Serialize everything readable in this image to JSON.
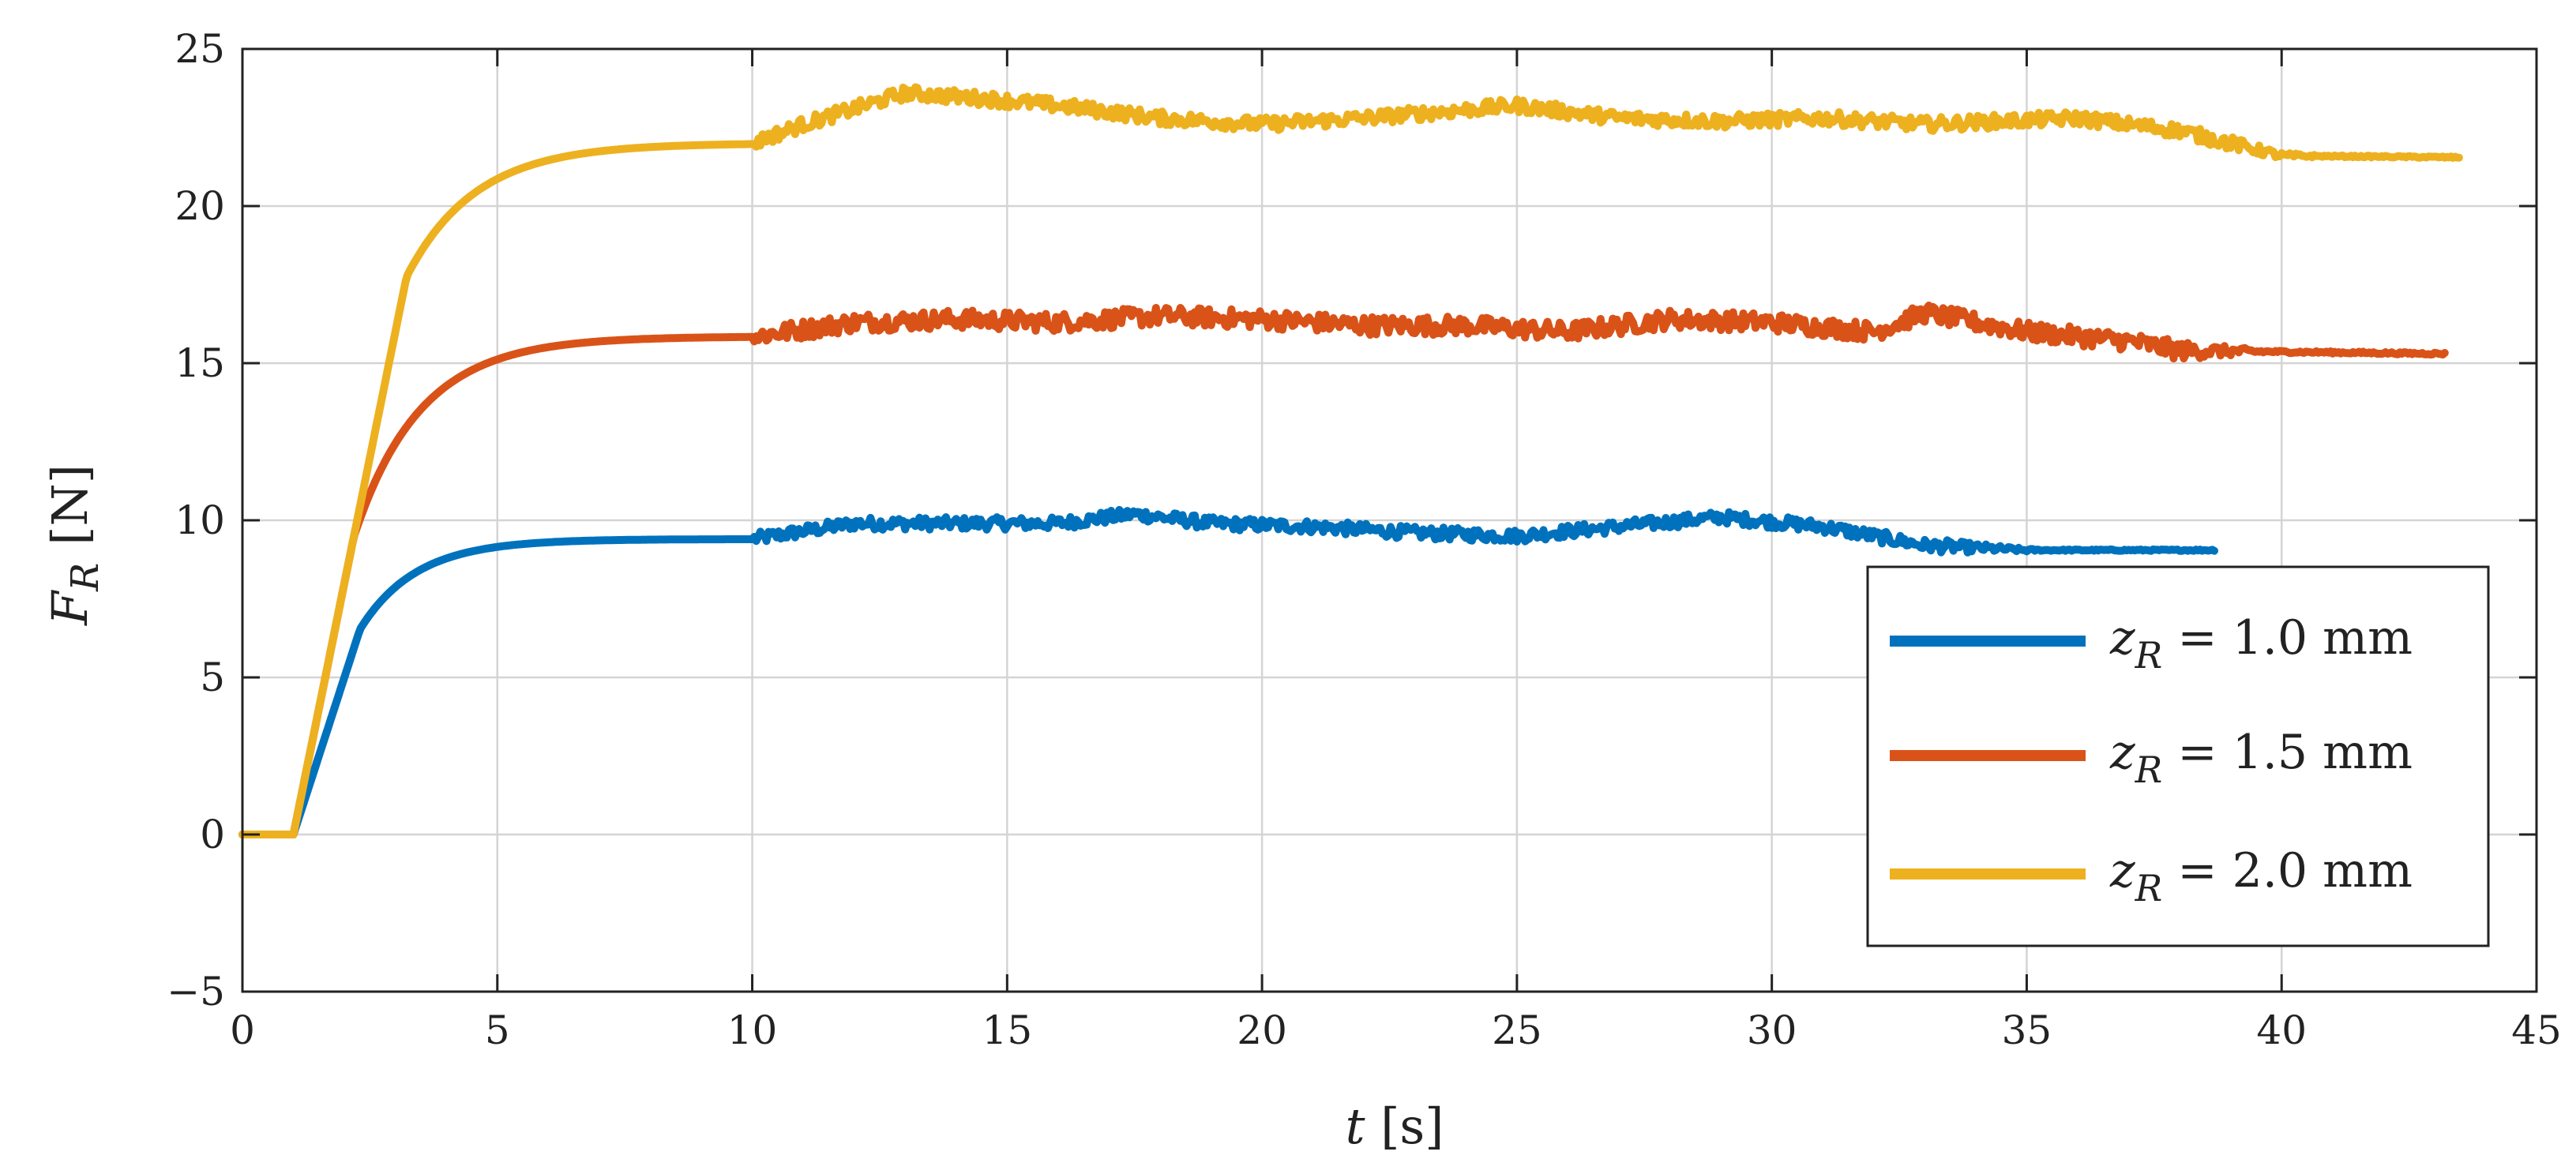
{
  "chart_data": {
    "type": "line",
    "title": "",
    "xlabel": "t [s]",
    "ylabel": "F_R [N]",
    "xlabel_parts": {
      "var": "t",
      "unit": " [s]"
    },
    "ylabel_parts": {
      "var": "F",
      "sub": "R",
      "unit": "[N]"
    },
    "xlim": [
      0,
      45
    ],
    "ylim": [
      -5,
      25
    ],
    "x_ticks": [
      0,
      5,
      10,
      15,
      20,
      25,
      30,
      35,
      40,
      45
    ],
    "y_ticks": [
      -5,
      0,
      5,
      10,
      15,
      20,
      25
    ],
    "x_tick_labels": [
      "0",
      "5",
      "10",
      "15",
      "20",
      "25",
      "30",
      "35",
      "40",
      "45"
    ],
    "y_tick_labels": [
      "−5",
      "0",
      "5",
      "10",
      "15",
      "20",
      "25"
    ],
    "grid": true,
    "legend_position": "bottom-right",
    "series": [
      {
        "name": "z_R = 1.0 mm",
        "label_var": "z",
        "label_sub": "R",
        "label_rest": " = 1.0 mm",
        "color": "#0072BD",
        "x_end": 38.7,
        "step_time": 1.0,
        "steady_level": 9.4,
        "tau": 1.1,
        "onset_slope": 5.0,
        "noisy_start": 10,
        "noisy_end": 33.5,
        "final_level": 9.05,
        "noise_amp": 0.2,
        "points": [
          [
            0,
            0
          ],
          [
            1,
            0
          ],
          [
            2,
            6.2
          ],
          [
            3,
            8.3
          ],
          [
            4,
            9.0
          ],
          [
            5,
            9.3
          ],
          [
            7,
            9.4
          ],
          [
            10,
            9.4
          ],
          [
            12,
            9.9
          ],
          [
            14,
            9.9
          ],
          [
            16,
            9.9
          ],
          [
            17.5,
            10.2
          ],
          [
            19,
            9.9
          ],
          [
            21,
            9.8
          ],
          [
            23,
            9.6
          ],
          [
            25,
            9.5
          ],
          [
            27,
            9.8
          ],
          [
            29,
            10.1
          ],
          [
            31,
            9.8
          ],
          [
            33,
            9.2
          ],
          [
            35,
            9.05
          ],
          [
            38.7,
            9.05
          ]
        ]
      },
      {
        "name": "z_R = 1.5 mm",
        "label_var": "z",
        "label_sub": "R",
        "label_rest": " = 1.5 mm",
        "color": "#D95319",
        "x_end": 43.2,
        "step_time": 1.0,
        "steady_level": 15.85,
        "tau": 1.3,
        "onset_slope": 8.0,
        "noisy_start": 10,
        "noisy_end": 38,
        "final_level": 15.3,
        "noise_amp": 0.3,
        "points": [
          [
            0,
            0
          ],
          [
            1,
            0
          ],
          [
            2,
            8.5
          ],
          [
            3,
            13.0
          ],
          [
            4,
            14.8
          ],
          [
            5,
            15.5
          ],
          [
            7,
            15.85
          ],
          [
            10,
            15.85
          ],
          [
            12,
            16.3
          ],
          [
            14,
            16.4
          ],
          [
            16,
            16.3
          ],
          [
            18,
            16.5
          ],
          [
            20,
            16.4
          ],
          [
            22,
            16.2
          ],
          [
            24,
            16.2
          ],
          [
            26,
            16.0
          ],
          [
            28,
            16.4
          ],
          [
            30,
            16.3
          ],
          [
            32,
            16.0
          ],
          [
            33,
            16.6
          ],
          [
            35,
            16.0
          ],
          [
            37,
            15.7
          ],
          [
            38,
            15.4
          ],
          [
            43.2,
            15.3
          ]
        ]
      },
      {
        "name": "z_R = 2.0 mm",
        "label_var": "z",
        "label_sub": "R",
        "label_rest": " = 2.0 mm",
        "color": "#EDB120",
        "x_end": 43.5,
        "step_time": 1.0,
        "steady_level": 22.0,
        "tau": 1.35,
        "onset_slope": 8.0,
        "noisy_start": 10,
        "noisy_end": 39,
        "final_level": 21.55,
        "noise_amp": 0.22,
        "points": [
          [
            0,
            0
          ],
          [
            1,
            0
          ],
          [
            2,
            7.6
          ],
          [
            3,
            15.8
          ],
          [
            4,
            19.8
          ],
          [
            5,
            21.4
          ],
          [
            7,
            22.0
          ],
          [
            10,
            22.0
          ],
          [
            11,
            22.6
          ],
          [
            13,
            23.6
          ],
          [
            14.7,
            23.4
          ],
          [
            16,
            23.2
          ],
          [
            18,
            22.8
          ],
          [
            20,
            22.6
          ],
          [
            22,
            22.8
          ],
          [
            25,
            23.2
          ],
          [
            27,
            22.8
          ],
          [
            29,
            22.7
          ],
          [
            31,
            22.8
          ],
          [
            33,
            22.6
          ],
          [
            36,
            22.8
          ],
          [
            38,
            22.4
          ],
          [
            40,
            21.6
          ],
          [
            43.5,
            21.55
          ]
        ]
      }
    ]
  }
}
